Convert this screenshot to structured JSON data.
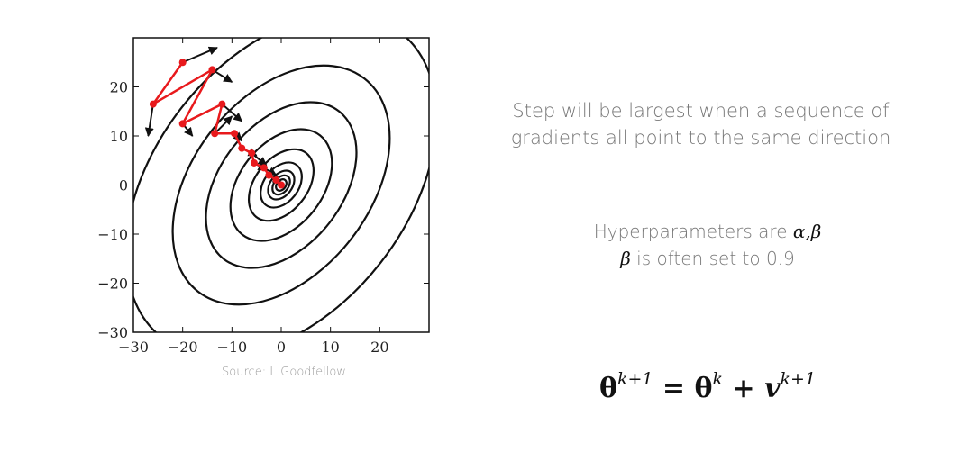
{
  "plot": {
    "x_ticks": [
      "−30",
      "−20",
      "−10",
      "0",
      "10",
      "20"
    ],
    "y_ticks": [
      "20",
      "10",
      "0",
      "−10",
      "−20",
      "−30"
    ],
    "xlim": [
      -30,
      30
    ],
    "ylim": [
      -30,
      30
    ],
    "trajectory": [
      [
        -20,
        25
      ],
      [
        -26,
        16.5
      ],
      [
        -14,
        23.5
      ],
      [
        -20,
        12.5
      ],
      [
        -12,
        16.5
      ],
      [
        -13.5,
        10.5
      ],
      [
        -9.5,
        10.5
      ],
      [
        -8,
        7.5
      ],
      [
        -6,
        6.5
      ],
      [
        -5.5,
        4.5
      ],
      [
        -3.5,
        3.5
      ],
      [
        -2.5,
        2
      ],
      [
        -1,
        1
      ],
      [
        0,
        0
      ]
    ],
    "colors": {
      "trajectory": "#e8191c",
      "contour": "#111111",
      "arrow": "#111111"
    }
  },
  "source_label": "Source: I. Goodfellow",
  "step_text": {
    "line1": "Step will be largest when a sequence of",
    "line2": "gradients all point to the same direction"
  },
  "hyper": {
    "prefix": "Hyperparameters are ",
    "alpha": "α",
    "comma": ",",
    "beta": "β",
    "beta_note": " is often set to 0.9"
  },
  "formula": {
    "theta": "θ",
    "exp_next": "k+1",
    "eq": " = ",
    "exp_k": "k",
    "plus": " + ",
    "v": "v"
  }
}
